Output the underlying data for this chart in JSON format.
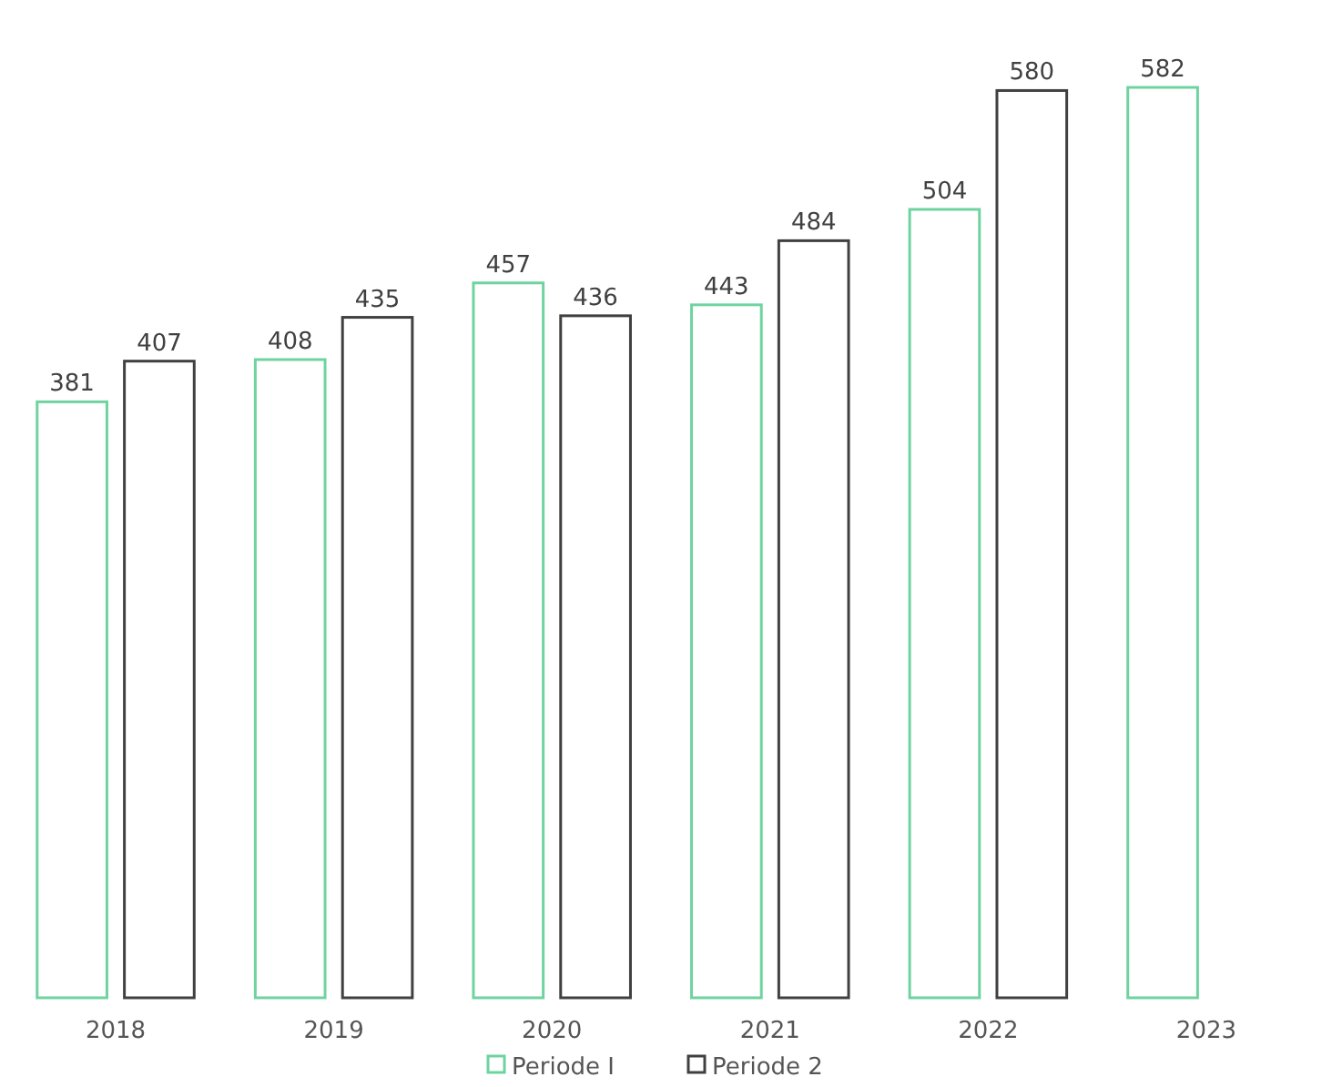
{
  "chart_data": {
    "type": "bar",
    "categories": [
      "2018",
      "2019",
      "2020",
      "2021",
      "2022",
      "2023"
    ],
    "series": [
      {
        "name": "Periode I",
        "color": "#6fd3a0",
        "values": [
          381,
          408,
          457,
          443,
          504,
          582
        ]
      },
      {
        "name": "Periode 2",
        "color": "#404040",
        "values": [
          407,
          435,
          436,
          484,
          580,
          null
        ]
      }
    ],
    "data_labels": true,
    "legend": "bottom",
    "grid": false
  }
}
